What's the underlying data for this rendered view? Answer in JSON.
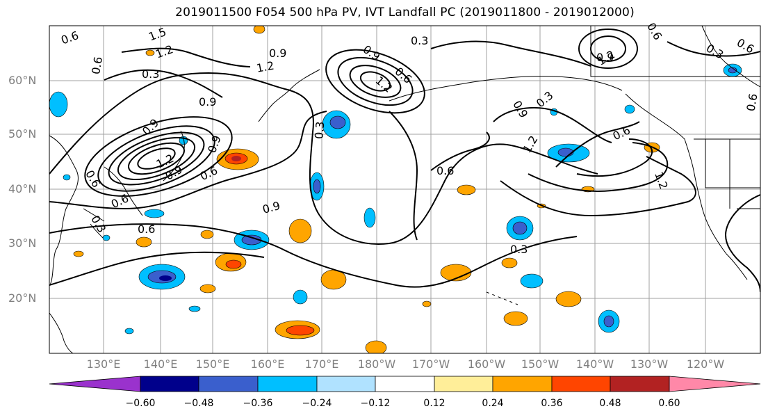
{
  "title": "2019011500 F054 500 hPa PV, IVT Landfall PC (2019011800 - 2019012000)",
  "map": {
    "lat_labels": [
      "60°N",
      "50°N",
      "40°N",
      "30°N",
      "20°N"
    ],
    "lon_labels": [
      "130°E",
      "140°E",
      "150°E",
      "160°E",
      "170°E",
      "180°W",
      "170°W",
      "160°W",
      "150°W",
      "140°W",
      "130°W",
      "120°W"
    ],
    "contour_labels": [
      "0.6",
      "1.5",
      "1.2",
      "0.9",
      "0.3",
      "0.9",
      "0.6",
      "0.3",
      "0.9",
      "1.2",
      "0.9",
      "0.6",
      "0.3",
      "0.6",
      "0.9",
      "1.2",
      "0.6",
      "0.3",
      "0.6",
      "0.9",
      "0.6",
      "1.2",
      "0.3",
      "0.9",
      "1.2",
      "0.6",
      "1.2",
      "0.6",
      "0.6",
      "1.2",
      "0.9",
      "0.6",
      "0.3",
      "0.9",
      "0.6",
      "0.3"
    ]
  },
  "colorbar": {
    "colors": [
      "#9a32cd",
      "#00008b",
      "#3a5fcd",
      "#00bfff",
      "#b0e2ff",
      "#ffffff",
      "#ffee99",
      "#ffa500",
      "#ff4500",
      "#b22222",
      "#ff88a8"
    ],
    "tick_labels": [
      "−0.60",
      "−0.48",
      "−0.36",
      "−0.24",
      "−0.12",
      "0.12",
      "0.24",
      "0.36",
      "0.48",
      "0.60"
    ]
  }
}
